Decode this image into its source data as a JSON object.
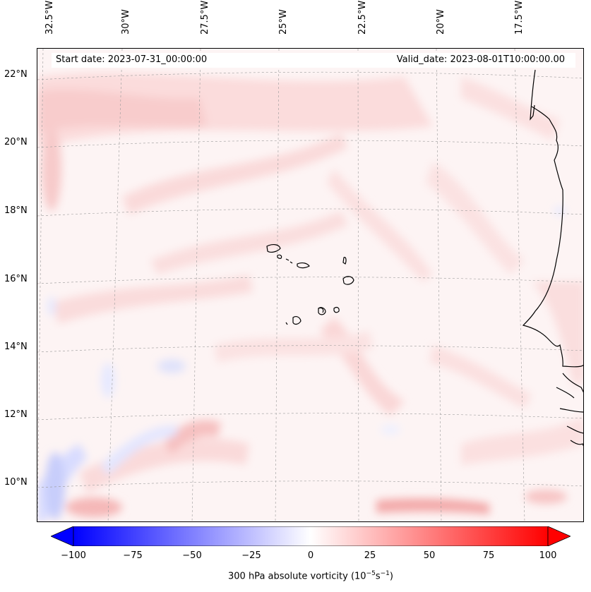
{
  "map": {
    "start_date": "Start date: 2023-07-31_00:00:00",
    "valid_date": "Valid_date: 2023-08-01T10:00:00.00",
    "longitude_labels": [
      "32.5°W",
      "30°W",
      "27.5°W",
      "25°W",
      "22.5°W",
      "20°W",
      "17.5°W"
    ],
    "latitude_labels": [
      "22°N",
      "20°N",
      "18°N",
      "16°N",
      "14°N",
      "12°N",
      "10°N"
    ],
    "gridlines": true,
    "coastline_color": "#000000"
  },
  "colorbar": {
    "ticks": [
      "−100",
      "−75",
      "−50",
      "−25",
      "0",
      "25",
      "50",
      "75",
      "100"
    ],
    "label_text": "300 hPa absolute vorticity (10",
    "label_exp1": "−5",
    "label_mid": "s",
    "label_exp2": "−1",
    "label_close": ")",
    "range": [
      -100,
      100
    ],
    "colormap": "bwr",
    "low_color": "#0000ff",
    "mid_color": "#ffffff",
    "high_color": "#ff0000",
    "extend": "both"
  }
}
